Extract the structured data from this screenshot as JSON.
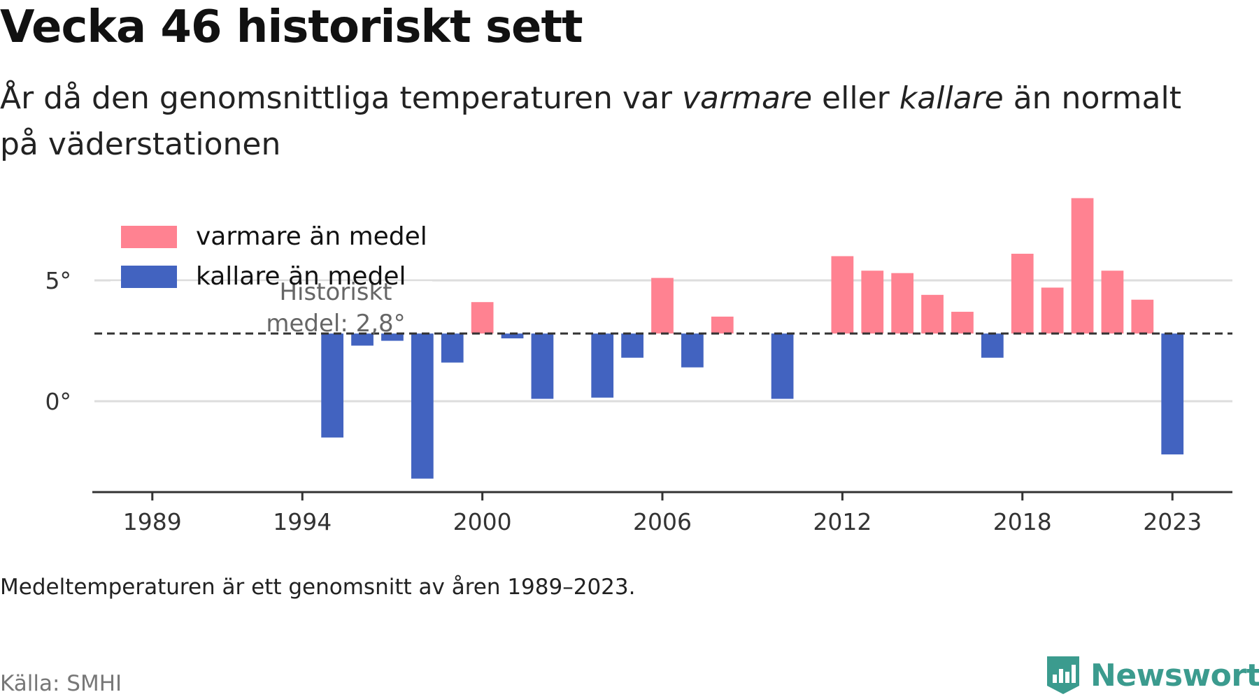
{
  "title": "Vecka 46 historiskt sett",
  "subtitle": {
    "part1": "År då den genomsnittliga temperaturen var ",
    "warm_word": "varmare",
    "part2": " eller ",
    "cold_word": "kallare",
    "part3": " än normalt på väderstationen"
  },
  "footnote": "Medeltemperaturen är ett genomsnitt av åren 1989–2023.",
  "source": "Källa: SMHI",
  "brand": {
    "name": "Newsworthy",
    "icon": "newsworthy-logo-icon",
    "color": "#3b9b8e"
  },
  "colors": {
    "warmer": "#ff8291",
    "colder": "#4263c0",
    "gridline": "#dddddd",
    "mean_line": "#333333",
    "axis": "#333333"
  },
  "chart_data": {
    "type": "bar",
    "baseline": 2.8,
    "mean_label_line1": "Historiskt",
    "mean_label_line2": "medel: 2,8°",
    "legend_placement": "top-left",
    "legend": [
      {
        "name": "varmare än medel",
        "color": "#ff8291"
      },
      {
        "name": "kallare än medel",
        "color": "#4263c0"
      }
    ],
    "xlim": [
      1987,
      2025
    ],
    "ylim": [
      -3.7,
      8.5
    ],
    "x_ticks": [
      {
        "value": 1989,
        "label": "1989"
      },
      {
        "value": 1994,
        "label": "1994"
      },
      {
        "value": 2000,
        "label": "2000"
      },
      {
        "value": 2006,
        "label": "2006"
      },
      {
        "value": 2012,
        "label": "2012"
      },
      {
        "value": 2018,
        "label": "2018"
      },
      {
        "value": 2023,
        "label": "2023"
      }
    ],
    "y_ticks": [
      {
        "value": 0,
        "label": "0°"
      },
      {
        "value": 5,
        "label": "5°"
      }
    ],
    "grid": true,
    "points": [
      {
        "year": 1995,
        "value": -1.5
      },
      {
        "year": 1996,
        "value": 2.3
      },
      {
        "year": 1997,
        "value": 2.5
      },
      {
        "year": 1998,
        "value": -3.2
      },
      {
        "year": 1999,
        "value": 1.6
      },
      {
        "year": 2000,
        "value": 4.1
      },
      {
        "year": 2001,
        "value": 2.6
      },
      {
        "year": 2002,
        "value": 0.1
      },
      {
        "year": 2004,
        "value": 0.15
      },
      {
        "year": 2005,
        "value": 1.8
      },
      {
        "year": 2006,
        "value": 5.1
      },
      {
        "year": 2007,
        "value": 1.4
      },
      {
        "year": 2008,
        "value": 3.5
      },
      {
        "year": 2010,
        "value": 0.1
      },
      {
        "year": 2012,
        "value": 6.0
      },
      {
        "year": 2013,
        "value": 5.4
      },
      {
        "year": 2014,
        "value": 5.3
      },
      {
        "year": 2015,
        "value": 4.4
      },
      {
        "year": 2016,
        "value": 3.7
      },
      {
        "year": 2017,
        "value": 1.8
      },
      {
        "year": 2018,
        "value": 6.1
      },
      {
        "year": 2019,
        "value": 4.7
      },
      {
        "year": 2020,
        "value": 8.4
      },
      {
        "year": 2021,
        "value": 5.4
      },
      {
        "year": 2022,
        "value": 4.2
      },
      {
        "year": 2023,
        "value": -2.2
      }
    ]
  }
}
